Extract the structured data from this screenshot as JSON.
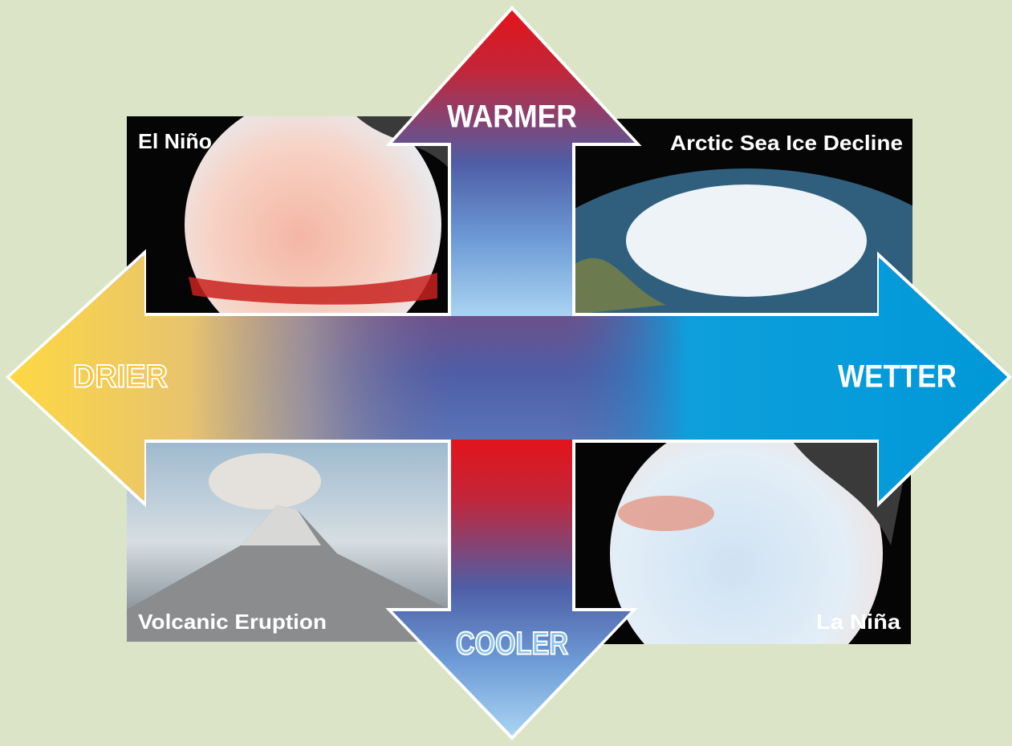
{
  "arrows": {
    "up": "WARMER",
    "down": "COOLER",
    "left": "DRIER",
    "right": "WETTER"
  },
  "panels": {
    "top_left": "El Niño",
    "top_right": "Arctic Sea Ice Decline",
    "bottom_left": "Volcanic Eruption",
    "bottom_right": "La Niña"
  }
}
